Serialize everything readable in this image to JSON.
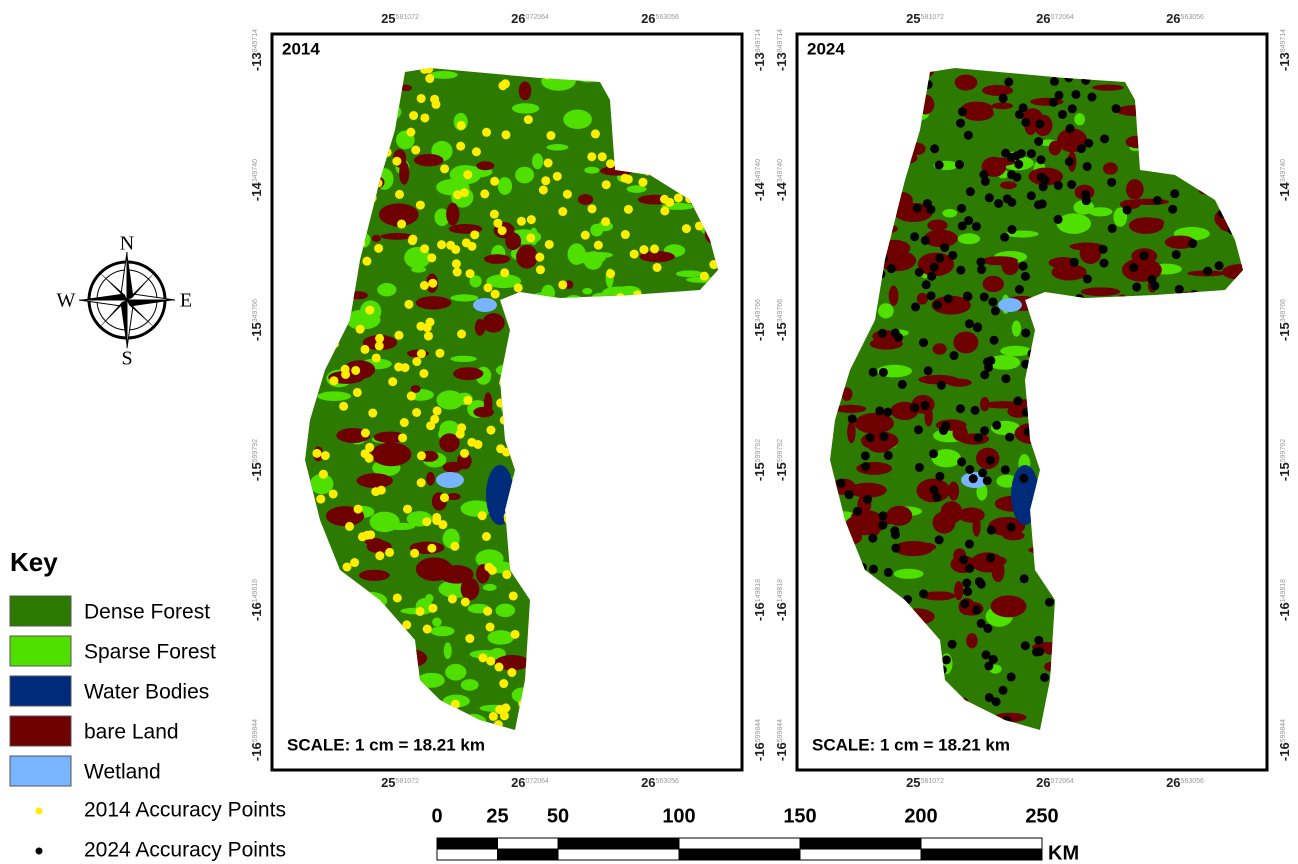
{
  "panels": [
    {
      "title": "2014",
      "scale": "SCALE: 1 cm = 18.21 km"
    },
    {
      "title": "2024",
      "scale": "SCALE: 1 cm = 18.21 km"
    }
  ],
  "coordinates": {
    "x": [
      {
        "deg": "25",
        "min": "581072"
      },
      {
        "deg": "26",
        "min": "072064"
      },
      {
        "deg": "26",
        "min": "563056"
      }
    ],
    "y": [
      {
        "deg": "-13",
        "min": "849714"
      },
      {
        "deg": "-14",
        "min": "349740"
      },
      {
        "deg": "-15",
        "min": "349766"
      },
      {
        "deg": "-15",
        "min": "599792"
      },
      {
        "deg": "-16",
        "min": "149818"
      },
      {
        "deg": "-16",
        "min": "599844"
      }
    ]
  },
  "compass": {
    "n": "N",
    "e": "E",
    "s": "S",
    "w": "W"
  },
  "legend": {
    "title": "Key",
    "items": [
      {
        "label": "Dense Forest",
        "color": "#2d7a00"
      },
      {
        "label": "Sparse Forest",
        "color": "#4fe000"
      },
      {
        "label": "Water Bodies",
        "color": "#002a7a"
      },
      {
        "label": "bare Land",
        "color": "#6e0000"
      },
      {
        "label": "Wetland",
        "color": "#78b4ff"
      }
    ],
    "points": [
      {
        "label": "2014 Accuracy Points",
        "color": "#ffee00"
      },
      {
        "label": "2024 Accuracy Points",
        "color": "#000000"
      }
    ]
  },
  "scale_bar": {
    "ticks": [
      0,
      25,
      50,
      100,
      150,
      200,
      250
    ],
    "unit": "KM"
  }
}
